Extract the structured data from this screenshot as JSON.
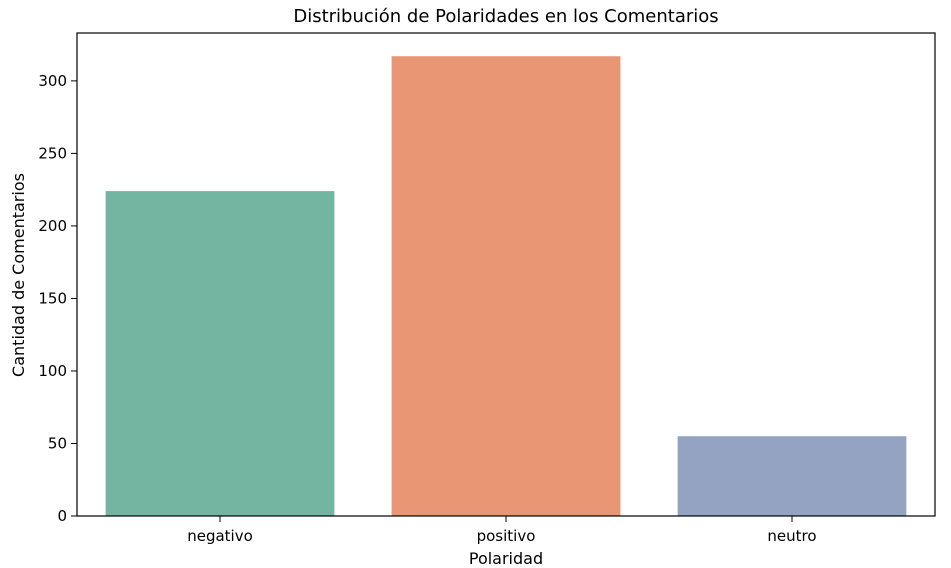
{
  "chart_data": {
    "type": "bar",
    "title": "Distribución de Polaridades en los Comentarios",
    "xlabel": "Polaridad",
    "ylabel": "Cantidad de Comentarios",
    "categories": [
      "negativo",
      "positivo",
      "neutro"
    ],
    "values": [
      224,
      317,
      55
    ],
    "colors": [
      "#72b6a1",
      "#e99675",
      "#95a3c3"
    ],
    "ylim": [
      0,
      333
    ],
    "yticks": [
      0,
      50,
      100,
      150,
      200,
      250,
      300
    ],
    "grid": false,
    "legend": "none"
  }
}
